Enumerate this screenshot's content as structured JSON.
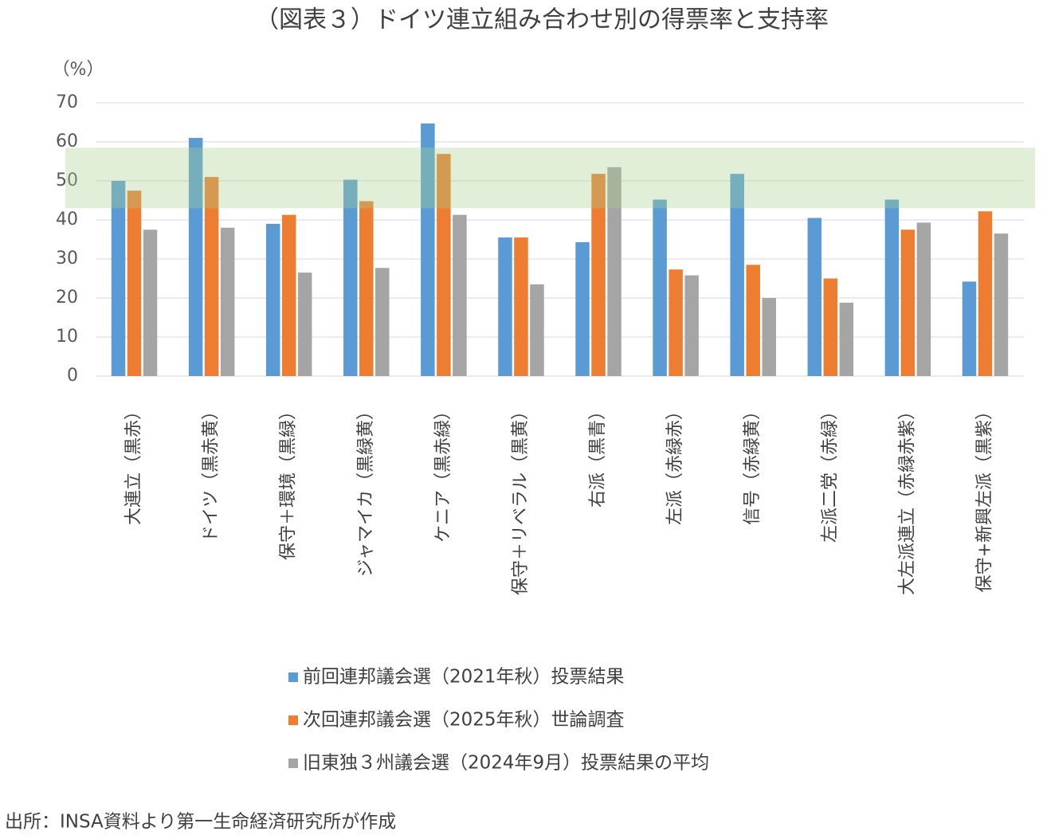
{
  "chart_data": {
    "type": "bar",
    "title": "（図表３）ドイツ連立組み合わせ別の得票率と支持率",
    "y_label": "（%）",
    "categories": [
      "大連立（黒赤）",
      "ドイツ（黒赤黄）",
      "保守＋環境（黒緑）",
      "ジャマイカ（黒緑黄）",
      "ケニア（黒赤緑）",
      "保守＋リベラル（黒黄）",
      "右派（黒青）",
      "左派（赤緑赤）",
      "信号（赤緑黄）",
      "左派二党（赤緑）",
      "大左派連立（赤緑赤紫）",
      "保守+新興左派（黒紫）"
    ],
    "series": [
      {
        "name": "前回連邦議会選（2021年秋）投票結果",
        "color": "#5b9bd5",
        "values": [
          50,
          61,
          39,
          50.3,
          64.7,
          35.5,
          34.3,
          45.2,
          51.8,
          40.5,
          45.2,
          24.2
        ]
      },
      {
        "name": "次回連邦議会選（2025年秋）世論調査",
        "color": "#ed7d31",
        "values": [
          47.5,
          51,
          41.3,
          44.8,
          56.9,
          35.5,
          51.8,
          27.3,
          28.5,
          25,
          37.5,
          42.2
        ]
      },
      {
        "name": "旧東独３州議会選（2024年9月）投票結果の平均",
        "color": "#a5a5a5",
        "values": [
          37.5,
          38,
          26.5,
          27.7,
          41.3,
          23.5,
          53.5,
          25.8,
          20,
          18.8,
          39.3,
          36.5
        ]
      }
    ],
    "highlight_band": [
      43,
      58.5
    ],
    "highlight_color": "#a9d18e",
    "ylim": [
      0,
      70
    ],
    "yticks": [
      0,
      10,
      20,
      30,
      40,
      50,
      60,
      70
    ],
    "grid": true,
    "source": "出所：INSA資料より第一生命経済研究所が作成"
  }
}
